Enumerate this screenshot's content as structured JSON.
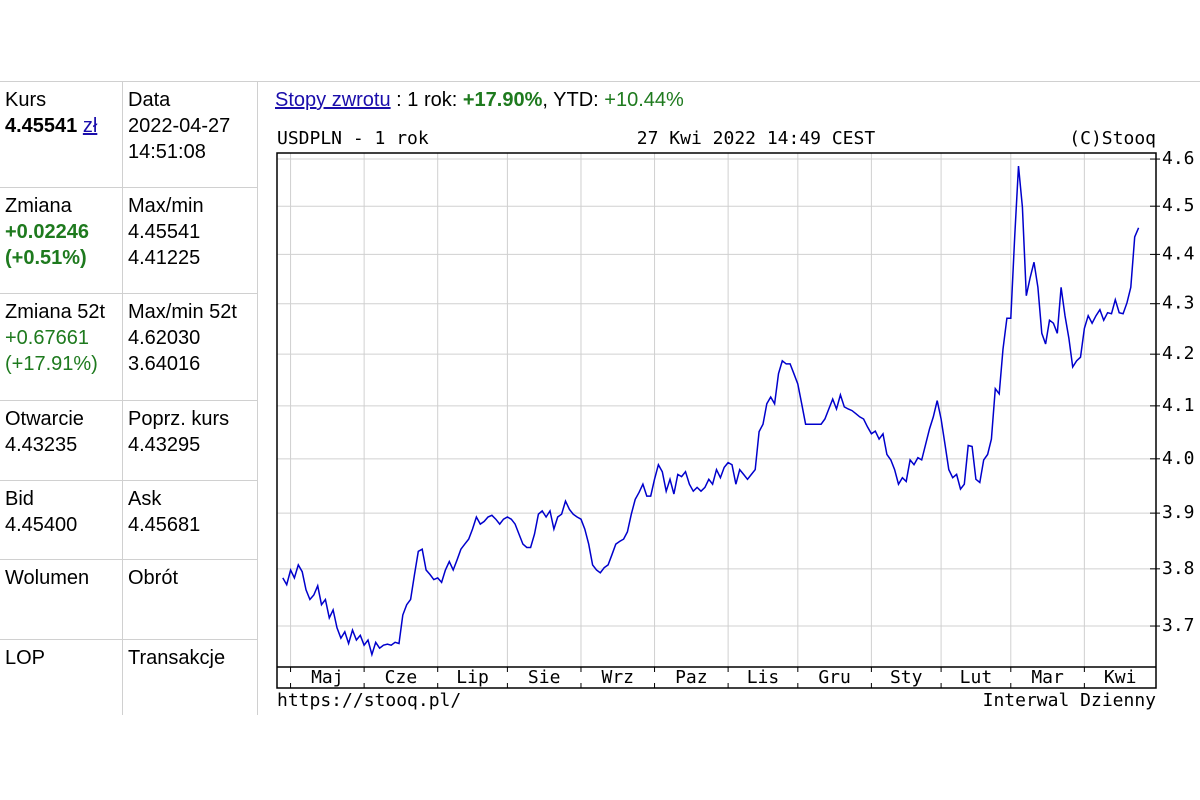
{
  "returns": {
    "link": "Stopy zwrotu",
    "parts": [
      ": 1 rok: ",
      "+17.90%",
      ", YTD: ",
      "+10.44%"
    ],
    "emphasis": [
      "plain",
      "green-bold",
      "plain",
      "green"
    ]
  },
  "table": {
    "rows": [
      [
        {
          "label": "Kurs",
          "lines": [
            "4.45541"
          ],
          "unit": "zł",
          "emphasis": "bold"
        },
        {
          "label": "Data",
          "lines": [
            "2022-04-27",
            "14:51:08"
          ],
          "emphasis": "plain"
        }
      ],
      [
        {
          "label": "Zmiana",
          "lines": [
            "+0.02246",
            "(+0.51%)"
          ],
          "emphasis": "green-bold"
        },
        {
          "label": "Max/min",
          "lines": [
            "4.45541",
            "4.41225"
          ],
          "emphasis": "plain"
        }
      ],
      [
        {
          "label": "Zmiana 52t",
          "lines": [
            "+0.67661",
            "(+17.91%)"
          ],
          "emphasis": "green"
        },
        {
          "label": "Max/min 52t",
          "lines": [
            "4.62030",
            "3.64016"
          ],
          "emphasis": "plain"
        }
      ],
      [
        {
          "label": "Otwarcie",
          "lines": [
            "4.43235"
          ],
          "emphasis": "plain"
        },
        {
          "label": "Poprz. kurs",
          "lines": [
            "4.43295"
          ],
          "emphasis": "plain"
        }
      ],
      [
        {
          "label": "Bid",
          "lines": [
            "4.45400"
          ],
          "emphasis": "plain"
        },
        {
          "label": "Ask",
          "lines": [
            "4.45681"
          ],
          "emphasis": "plain"
        }
      ],
      [
        {
          "label": "Wolumen",
          "lines": [],
          "emphasis": "plain"
        },
        {
          "label": "Obrót",
          "lines": [],
          "emphasis": "plain"
        }
      ],
      [
        {
          "label": "LOP",
          "lines": [],
          "emphasis": "plain"
        },
        {
          "label": "Transakcje",
          "lines": [],
          "emphasis": "plain"
        }
      ]
    ]
  },
  "chart_data": {
    "type": "line",
    "title": "USDPLN - 1 rok",
    "timestamp": "27 Kwi 2022 14:49 CEST",
    "source": "(C)Stooq",
    "footer_left": "https://stooq.pl/",
    "footer_right": "Interwal Dzienny",
    "color": "#0000cc",
    "log_scale": true,
    "grid": true,
    "ylim": [
      3.63,
      4.613
    ],
    "yticks": [
      3.7,
      3.8,
      3.9,
      {
        "value": 4,
        "label": "4.0"
      },
      4.1,
      4.2,
      4.3,
      4.4,
      4.5,
      4.6
    ],
    "xlim": [
      -1.5,
      225.5
    ],
    "xticks": [
      {
        "value": 2,
        "label": "Maj"
      },
      {
        "value": 21,
        "label": "Cze"
      },
      {
        "value": 40,
        "label": "Lip"
      },
      {
        "value": 58,
        "label": "Sie"
      },
      {
        "value": 77,
        "label": "Wrz"
      },
      {
        "value": 96,
        "label": "Paz"
      },
      {
        "value": 115,
        "label": "Lis"
      },
      {
        "value": 133,
        "label": "Gru"
      },
      {
        "value": 152,
        "label": "Sty"
      },
      {
        "value": 170,
        "label": "Lut"
      },
      {
        "value": 188,
        "label": "Mar"
      },
      {
        "value": 207,
        "label": "Kwi"
      }
    ],
    "values": [
      3.784,
      3.772,
      3.798,
      3.784,
      3.807,
      3.795,
      3.763,
      3.746,
      3.754,
      3.77,
      3.737,
      3.746,
      3.714,
      3.728,
      3.697,
      3.679,
      3.69,
      3.67,
      3.693,
      3.676,
      3.684,
      3.667,
      3.676,
      3.651,
      3.672,
      3.662,
      3.667,
      3.669,
      3.667,
      3.672,
      3.67,
      3.719,
      3.737,
      3.746,
      3.79,
      3.831,
      3.835,
      3.798,
      3.79,
      3.781,
      3.784,
      3.776,
      3.798,
      3.813,
      3.798,
      3.816,
      3.835,
      3.844,
      3.853,
      3.871,
      3.893,
      3.88,
      3.885,
      3.893,
      3.896,
      3.889,
      3.88,
      3.889,
      3.893,
      3.889,
      3.88,
      3.862,
      3.844,
      3.838,
      3.838,
      3.862,
      3.898,
      3.904,
      3.893,
      3.904,
      3.871,
      3.893,
      3.898,
      3.922,
      3.907,
      3.898,
      3.893,
      3.889,
      3.871,
      3.844,
      3.807,
      3.798,
      3.793,
      3.802,
      3.807,
      3.825,
      3.844,
      3.849,
      3.853,
      3.866,
      3.898,
      3.925,
      3.938,
      3.953,
      3.931,
      3.931,
      3.962,
      3.989,
      3.976,
      3.94,
      3.962,
      3.935,
      3.971,
      3.967,
      3.976,
      3.953,
      3.94,
      3.947,
      3.94,
      3.947,
      3.962,
      3.953,
      3.98,
      3.965,
      3.984,
      3.993,
      3.989,
      3.953,
      3.98,
      3.971,
      3.962,
      3.971,
      3.98,
      4.051,
      4.065,
      4.104,
      4.117,
      4.104,
      4.162,
      4.187,
      4.181,
      4.181,
      4.162,
      4.142,
      4.104,
      4.065,
      4.065,
      4.065,
      4.065,
      4.065,
      4.075,
      4.094,
      4.113,
      4.094,
      4.121,
      4.098,
      4.094,
      4.091,
      4.085,
      4.079,
      4.075,
      4.06,
      4.047,
      4.052,
      4.037,
      4.047,
      4.008,
      3.998,
      3.98,
      3.953,
      3.965,
      3.958,
      3.998,
      3.989,
      4.002,
      3.998,
      4.027,
      4.056,
      4.079,
      4.11,
      4.075,
      4.027,
      3.98,
      3.965,
      3.971,
      3.944,
      3.953,
      4.025,
      4.023,
      3.962,
      3.956,
      3.998,
      4.008,
      4.037,
      4.133,
      4.123,
      4.21,
      4.271,
      4.271,
      4.436,
      4.585,
      4.498,
      4.316,
      4.353,
      4.384,
      4.333,
      4.241,
      4.22,
      4.267,
      4.261,
      4.241,
      4.333,
      4.276,
      4.231,
      4.175,
      4.187,
      4.194,
      4.251,
      4.276,
      4.261,
      4.276,
      4.288,
      4.267,
      4.282,
      4.28,
      4.308,
      4.282,
      4.28,
      4.302,
      4.333,
      4.436,
      4.455
    ]
  }
}
